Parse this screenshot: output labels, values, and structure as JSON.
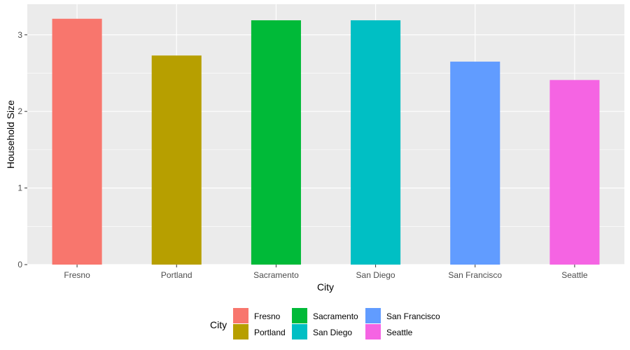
{
  "chart_data": {
    "type": "bar",
    "categories": [
      "Fresno",
      "Portland",
      "Sacramento",
      "San Diego",
      "San Francisco",
      "Seattle"
    ],
    "values": [
      3.21,
      2.73,
      3.19,
      3.19,
      2.65,
      2.41
    ],
    "colors": [
      "#F8766D",
      "#B79F00",
      "#00BA38",
      "#00BFC4",
      "#619CFF",
      "#F564E3"
    ],
    "xlabel": "City",
    "ylabel": "Household Size",
    "ylim": [
      0,
      3.4
    ],
    "yticks": [
      0,
      1,
      2,
      3
    ],
    "grid": true,
    "panel_background": "#EBEBEB",
    "legend": {
      "title": "City",
      "placement": "bottom",
      "columns": [
        [
          "Fresno",
          "Portland"
        ],
        [
          "Sacramento",
          "San Diego"
        ],
        [
          "San Francisco",
          "Seattle"
        ]
      ]
    }
  }
}
